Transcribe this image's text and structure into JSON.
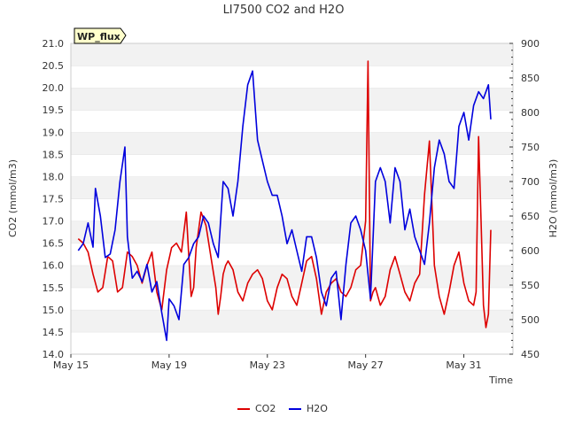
{
  "chart_data": {
    "type": "line",
    "title": "LI7500 CO2 and H2O",
    "xlabel": "Time",
    "ylabel_left": "CO2 (mmol/m3)",
    "ylabel_right": "H2O (mmol/m3)",
    "badge": "WP_flux",
    "x_tick_labels": [
      "May 15",
      "May 19",
      "May 23",
      "May 27",
      "May 31"
    ],
    "x_tick_values": [
      15,
      19,
      23,
      27,
      31
    ],
    "xlim": [
      15,
      33
    ],
    "ylim_left": [
      14.0,
      21.0
    ],
    "ylim_right": [
      450,
      900
    ],
    "y_left_ticks": [
      "14.0",
      "14.5",
      "15.0",
      "15.5",
      "16.0",
      "16.5",
      "17.0",
      "17.5",
      "18.0",
      "18.5",
      "19.0",
      "19.5",
      "20.0",
      "20.5",
      "21.0"
    ],
    "y_left_tick_values": [
      14.0,
      14.5,
      15.0,
      15.5,
      16.0,
      16.5,
      17.0,
      17.5,
      18.0,
      18.5,
      19.0,
      19.5,
      20.0,
      20.5,
      21.0
    ],
    "y_right_ticks": [
      "450",
      "500",
      "550",
      "600",
      "650",
      "700",
      "750",
      "800",
      "850",
      "900"
    ],
    "y_right_tick_values": [
      450,
      500,
      550,
      600,
      650,
      700,
      750,
      800,
      850,
      900
    ],
    "grid": "horizontal bands",
    "legend_position": "bottom-center",
    "series": [
      {
        "name": "CO2",
        "axis": "left",
        "color": "#dd0000",
        "x": [
          15.3,
          15.5,
          15.7,
          15.9,
          16.1,
          16.3,
          16.5,
          16.7,
          16.9,
          17.1,
          17.3,
          17.5,
          17.7,
          17.9,
          18.1,
          18.3,
          18.5,
          18.7,
          18.9,
          19.1,
          19.3,
          19.5,
          19.7,
          19.8,
          19.9,
          20.0,
          20.1,
          20.2,
          20.3,
          20.5,
          20.7,
          20.9,
          21.0,
          21.1,
          21.2,
          21.3,
          21.4,
          21.5,
          21.6,
          21.8,
          22.0,
          22.2,
          22.4,
          22.6,
          22.8,
          23.0,
          23.2,
          23.4,
          23.6,
          23.8,
          24.0,
          24.2,
          24.4,
          24.6,
          24.8,
          25.0,
          25.2,
          25.4,
          25.6,
          25.8,
          26.0,
          26.2,
          26.4,
          26.6,
          26.8,
          27.0,
          27.1,
          27.2,
          27.3,
          27.4,
          27.6,
          27.8,
          28.0,
          28.2,
          28.4,
          28.6,
          28.8,
          29.0,
          29.2,
          29.4,
          29.6,
          29.8,
          30.0,
          30.2,
          30.4,
          30.6,
          30.8,
          31.0,
          31.2,
          31.4,
          31.5,
          31.6,
          31.7,
          31.8,
          31.9,
          32.0,
          32.1
        ],
        "values": [
          16.6,
          16.5,
          16.3,
          15.8,
          15.4,
          15.5,
          16.2,
          16.1,
          15.4,
          15.5,
          16.3,
          16.2,
          16.0,
          15.6,
          16.0,
          16.3,
          15.4,
          15.0,
          15.9,
          16.4,
          16.5,
          16.3,
          17.2,
          16.2,
          15.3,
          15.5,
          16.4,
          16.8,
          17.2,
          16.9,
          16.2,
          15.5,
          14.9,
          15.3,
          15.8,
          16.0,
          16.1,
          16.0,
          15.9,
          15.4,
          15.2,
          15.6,
          15.8,
          15.9,
          15.7,
          15.2,
          15.0,
          15.5,
          15.8,
          15.7,
          15.3,
          15.1,
          15.6,
          16.1,
          16.2,
          15.7,
          14.9,
          15.4,
          15.6,
          15.7,
          15.4,
          15.3,
          15.5,
          15.9,
          16.0,
          17.0,
          20.6,
          15.2,
          15.4,
          15.5,
          15.1,
          15.3,
          15.9,
          16.2,
          15.8,
          15.4,
          15.2,
          15.6,
          15.8,
          17.6,
          18.8,
          16.0,
          15.3,
          14.9,
          15.4,
          16.0,
          16.3,
          15.6,
          15.2,
          15.1,
          15.4,
          18.9,
          17.0,
          15.1,
          14.6,
          14.9,
          16.8
        ],
        "legend_label": "CO2"
      },
      {
        "name": "H2O",
        "axis": "right",
        "color": "#0000dd",
        "x": [
          15.3,
          15.5,
          15.7,
          15.9,
          16.0,
          16.2,
          16.4,
          16.6,
          16.8,
          17.0,
          17.2,
          17.3,
          17.5,
          17.7,
          17.9,
          18.1,
          18.3,
          18.5,
          18.7,
          18.9,
          19.0,
          19.2,
          19.4,
          19.6,
          19.8,
          20.0,
          20.2,
          20.4,
          20.6,
          20.8,
          21.0,
          21.2,
          21.4,
          21.6,
          21.8,
          22.0,
          22.2,
          22.4,
          22.6,
          22.8,
          23.0,
          23.2,
          23.4,
          23.6,
          23.8,
          24.0,
          24.2,
          24.4,
          24.6,
          24.8,
          25.0,
          25.2,
          25.4,
          25.6,
          25.8,
          26.0,
          26.2,
          26.4,
          26.6,
          26.8,
          27.0,
          27.2,
          27.4,
          27.6,
          27.8,
          28.0,
          28.2,
          28.4,
          28.6,
          28.8,
          29.0,
          29.2,
          29.4,
          29.6,
          29.8,
          30.0,
          30.2,
          30.4,
          30.6,
          30.8,
          31.0,
          31.2,
          31.4,
          31.6,
          31.8,
          32.0,
          32.1
        ],
        "values": [
          600,
          610,
          640,
          605,
          690,
          650,
          590,
          595,
          630,
          700,
          750,
          620,
          560,
          570,
          555,
          580,
          540,
          555,
          510,
          470,
          530,
          520,
          500,
          580,
          590,
          610,
          620,
          650,
          640,
          610,
          590,
          700,
          690,
          650,
          700,
          780,
          840,
          860,
          760,
          730,
          700,
          680,
          680,
          650,
          610,
          630,
          600,
          570,
          620,
          620,
          590,
          540,
          520,
          560,
          570,
          500,
          580,
          640,
          650,
          630,
          600,
          530,
          700,
          720,
          700,
          640,
          720,
          700,
          630,
          660,
          620,
          600,
          580,
          640,
          720,
          760,
          740,
          700,
          690,
          780,
          800,
          760,
          810,
          830,
          820,
          840,
          790
        ],
        "legend_label": "H2O"
      }
    ]
  }
}
